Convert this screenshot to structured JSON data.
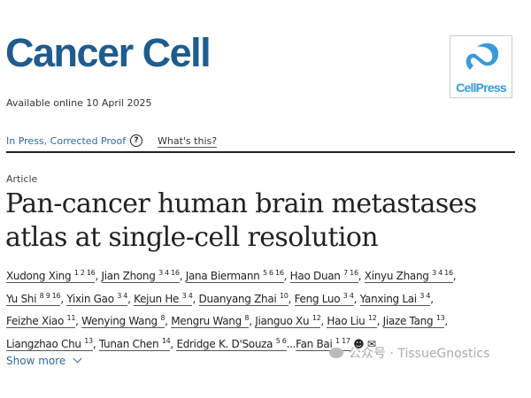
{
  "journal": {
    "name": "Cancer Cell",
    "publisher_logo": "CellPress"
  },
  "available": "Available online 10 April 2025",
  "status": {
    "label": "In Press, Corrected Proof",
    "help_icon": "question-circle-icon",
    "help_link": "What's this?"
  },
  "article": {
    "type": "Article",
    "title": "Pan-cancer human brain metastases atlas at single-cell resolution"
  },
  "authors": [
    {
      "name": "Xudong Xing",
      "aff": "1 2 16"
    },
    {
      "name": "Jian Zhong",
      "aff": "3 4 16"
    },
    {
      "name": "Jana Biermann",
      "aff": "5 6 16"
    },
    {
      "name": "Hao Duan",
      "aff": "7 16"
    },
    {
      "name": "Xinyu Zhang",
      "aff": "3 4 16"
    },
    {
      "name": "Yu Shi",
      "aff": "8 9 16"
    },
    {
      "name": "Yixin Gao",
      "aff": "3 4"
    },
    {
      "name": "Kejun He",
      "aff": "3 4"
    },
    {
      "name": "Duanyang Zhai",
      "aff": "10"
    },
    {
      "name": "Feng Luo",
      "aff": "3 4"
    },
    {
      "name": "Yanxing Lai",
      "aff": "3 4"
    },
    {
      "name": "Feizhe Xiao",
      "aff": "11"
    },
    {
      "name": "Wenying Wang",
      "aff": "8"
    },
    {
      "name": "Mengru Wang",
      "aff": "8"
    },
    {
      "name": "Jianguo Xu",
      "aff": "12"
    },
    {
      "name": "Hao Liu",
      "aff": "12"
    },
    {
      "name": "Jiaze Tang",
      "aff": "13"
    },
    {
      "name": "Liangzhao Chu",
      "aff": "13"
    },
    {
      "name": "Tunan Chen",
      "aff": "14"
    },
    {
      "name": "Edridge K. D'Souza",
      "aff": "5 6"
    },
    {
      "name": "Fan Bai",
      "aff": "1 17"
    }
  ],
  "show_more": "Show more",
  "watermark": "公众号 · TissueGnostics"
}
